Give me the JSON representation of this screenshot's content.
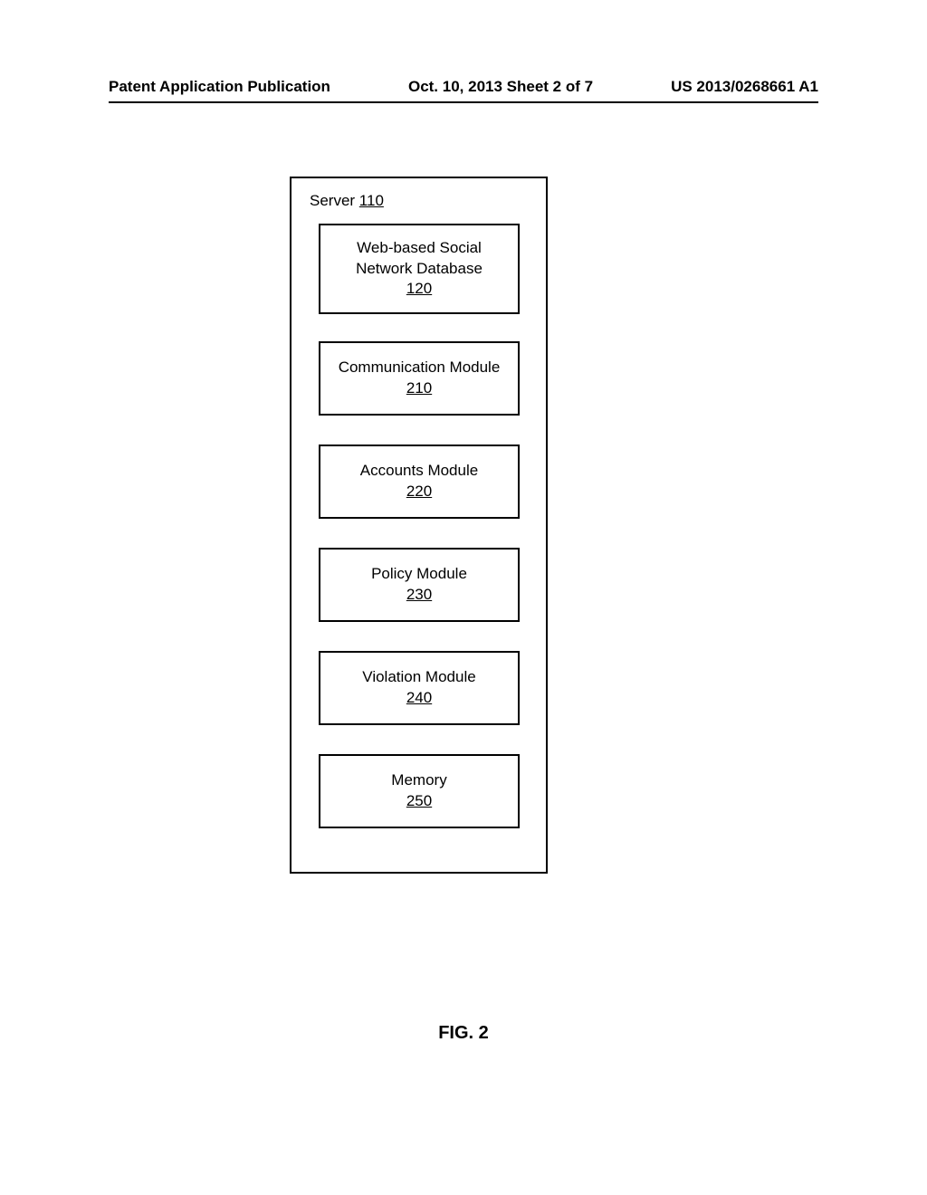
{
  "header": {
    "left": "Patent Application Publication",
    "center": "Oct. 10, 2013  Sheet 2 of 7",
    "right": "US 2013/0268661 A1"
  },
  "diagram": {
    "type": "flowchart",
    "background_color": "#ffffff",
    "border_color": "#000000",
    "border_width": 2,
    "font_family": "Arial",
    "font_size": 17,
    "container": {
      "label_prefix": "Server ",
      "ref_num": "110",
      "nodes": [
        {
          "id": "box-1",
          "line1": "Web-based Social",
          "line2": "Network Database",
          "ref_num": "120"
        },
        {
          "id": "box-2",
          "line1": "Communication Module",
          "line2": "",
          "ref_num": "210"
        },
        {
          "id": "box-3",
          "line1": "Accounts Module",
          "line2": "",
          "ref_num": "220"
        },
        {
          "id": "box-4",
          "line1": "Policy Module",
          "line2": "",
          "ref_num": "230"
        },
        {
          "id": "box-5",
          "line1": "Violation Module",
          "line2": "",
          "ref_num": "240"
        },
        {
          "id": "box-6",
          "line1": "Memory",
          "line2": "",
          "ref_num": "250"
        }
      ]
    }
  },
  "figure_label": "FIG. 2"
}
